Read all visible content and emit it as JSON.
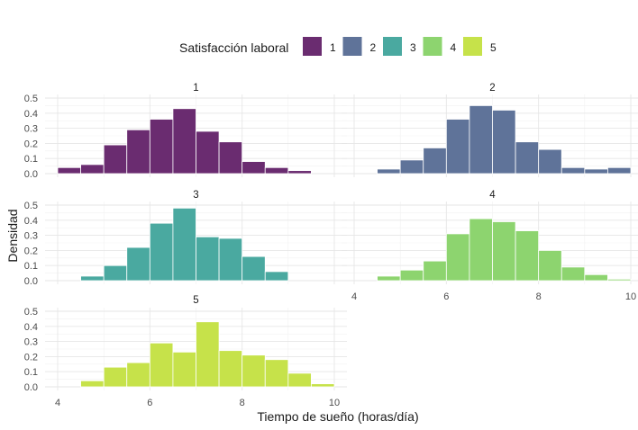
{
  "chart_data": {
    "type": "bar",
    "chart_subtype": "faceted-histogram",
    "xlabel": "Tiempo de sueño (horas/día)",
    "ylabel": "Densidad",
    "xlim": [
      3.8,
      10.2
    ],
    "ylim": [
      0,
      0.5
    ],
    "x_ticks": [
      4,
      6,
      8,
      10
    ],
    "y_ticks": [
      0,
      0.1,
      0.2,
      0.3,
      0.4,
      0.5
    ],
    "y_tick_labels": [
      "0.0",
      "0.1",
      "0.2",
      "0.3",
      "0.4",
      "0.5"
    ],
    "bin_width": 0.5,
    "grid": true,
    "legend": {
      "title": "Satisfacción laboral",
      "position": "top",
      "items": [
        {
          "label": "1",
          "color": "#6a2c70"
        },
        {
          "label": "2",
          "color": "#5f7399"
        },
        {
          "label": "3",
          "color": "#4aa9a0"
        },
        {
          "label": "4",
          "color": "#8dd46f"
        },
        {
          "label": "5",
          "color": "#c6e24a"
        }
      ]
    },
    "facets": [
      {
        "title": "1",
        "color": "#6a2c70",
        "bins_start": [
          4.0,
          4.5,
          5.0,
          5.5,
          6.0,
          6.5,
          7.0,
          7.5,
          8.0,
          8.5,
          9.0
        ],
        "values": [
          0.04,
          0.06,
          0.19,
          0.29,
          0.36,
          0.43,
          0.28,
          0.21,
          0.08,
          0.04,
          0.02
        ]
      },
      {
        "title": "2",
        "color": "#5f7399",
        "bins_start": [
          4.5,
          5.0,
          5.5,
          6.0,
          6.5,
          7.0,
          7.5,
          8.0,
          8.5,
          9.0,
          9.5
        ],
        "values": [
          0.03,
          0.09,
          0.17,
          0.36,
          0.45,
          0.42,
          0.21,
          0.16,
          0.04,
          0.03,
          0.04
        ]
      },
      {
        "title": "3",
        "color": "#4aa9a0",
        "bins_start": [
          4.5,
          5.0,
          5.5,
          6.0,
          6.5,
          7.0,
          7.5,
          8.0,
          8.5
        ],
        "values": [
          0.03,
          0.1,
          0.22,
          0.38,
          0.48,
          0.29,
          0.28,
          0.16,
          0.06
        ]
      },
      {
        "title": "4",
        "color": "#8dd46f",
        "bins_start": [
          4.5,
          5.0,
          5.5,
          6.0,
          6.5,
          7.0,
          7.5,
          8.0,
          8.5,
          9.0,
          9.5
        ],
        "values": [
          0.03,
          0.07,
          0.13,
          0.31,
          0.41,
          0.39,
          0.33,
          0.2,
          0.09,
          0.04,
          0.01
        ]
      },
      {
        "title": "5",
        "color": "#c6e24a",
        "bins_start": [
          4.5,
          5.0,
          5.5,
          6.0,
          6.5,
          7.0,
          7.5,
          8.0,
          8.5,
          9.0,
          9.5
        ],
        "values": [
          0.04,
          0.13,
          0.16,
          0.29,
          0.23,
          0.43,
          0.24,
          0.21,
          0.18,
          0.09,
          0.02
        ]
      }
    ]
  }
}
